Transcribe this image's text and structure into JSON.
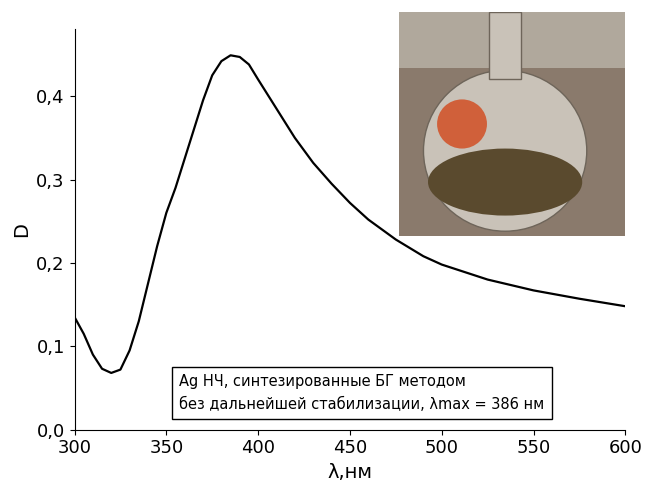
{
  "chart_data": {
    "type": "line",
    "x_label": "λ,нм",
    "y_label": "D",
    "annotation": "Ag НЧ, синтезированные БГ методом\nбез дальнейшей стабилизации, λmax = 386 нм",
    "x": [
      300,
      305,
      310,
      315,
      320,
      325,
      330,
      335,
      340,
      345,
      350,
      355,
      360,
      365,
      370,
      375,
      380,
      385,
      390,
      395,
      400,
      410,
      420,
      430,
      440,
      450,
      460,
      475,
      490,
      500,
      525,
      550,
      575,
      600
    ],
    "values": [
      0.135,
      0.115,
      0.09,
      0.073,
      0.068,
      0.072,
      0.095,
      0.13,
      0.175,
      0.22,
      0.26,
      0.29,
      0.325,
      0.36,
      0.395,
      0.425,
      0.442,
      0.449,
      0.447,
      0.438,
      0.42,
      0.385,
      0.35,
      0.32,
      0.295,
      0.272,
      0.252,
      0.228,
      0.208,
      0.198,
      0.18,
      0.167,
      0.157,
      0.148
    ],
    "color": "#000000",
    "xlim": [
      300,
      600
    ],
    "xticks": [
      300,
      350,
      400,
      450,
      500,
      550,
      600
    ],
    "ylim": [
      0.0,
      0.48
    ],
    "yticks": [
      {
        "value": 0.0,
        "label": "0,0"
      },
      {
        "value": 0.1,
        "label": "0,1"
      },
      {
        "value": 0.2,
        "label": "0,2"
      },
      {
        "value": 0.3,
        "label": "0,3"
      },
      {
        "value": 0.4,
        "label": "0,4"
      }
    ],
    "grid": false
  }
}
